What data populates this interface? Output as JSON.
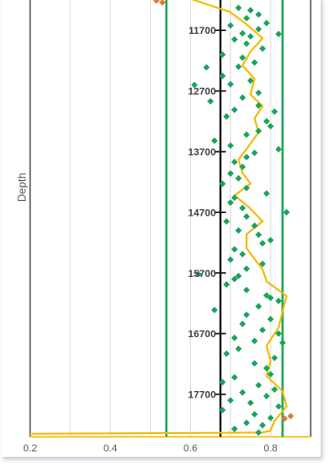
{
  "chart_data": {
    "type": "scatter",
    "title": "",
    "ylabel": "Depth",
    "xlabel": "",
    "xlim": [
      0.2,
      0.9
    ],
    "ylim": [
      18400,
      11200
    ],
    "x_ticks": [
      "0.2",
      "0.4",
      "0.6",
      "0.8"
    ],
    "x_tick_values": [
      0.2,
      0.4,
      0.6,
      0.8
    ],
    "depth_labels": [
      11700,
      12700,
      13700,
      14700,
      15700,
      16700,
      17700
    ],
    "grid": true,
    "colors": {
      "points_green": "#1aa35a",
      "points_orange": "#e07b39",
      "limit_lines": "#22a85a",
      "trend_line": "#f5b800",
      "center_line": "#000000",
      "grid": "#d9d9d9"
    },
    "reference_lines": {
      "center": 0.675,
      "lower_limit": 0.54,
      "upper_limit": 0.83
    },
    "series": [
      {
        "marker": "green-diamond",
        "points": [
          [
            0.72,
            11330
          ],
          [
            0.75,
            11370
          ],
          [
            0.77,
            11440
          ],
          [
            0.74,
            11500
          ],
          [
            0.79,
            11580
          ],
          [
            0.7,
            11620
          ],
          [
            0.77,
            11680
          ],
          [
            0.73,
            11750
          ],
          [
            0.75,
            11800
          ],
          [
            0.82,
            11760
          ],
          [
            0.71,
            11850
          ],
          [
            0.74,
            11920
          ],
          [
            0.78,
            12000
          ],
          [
            0.68,
            12100
          ],
          [
            0.73,
            12150
          ],
          [
            0.76,
            12230
          ],
          [
            0.64,
            12310
          ],
          [
            0.72,
            12300
          ],
          [
            0.68,
            12450
          ],
          [
            0.75,
            12530
          ],
          [
            0.61,
            12600
          ],
          [
            0.7,
            12590
          ],
          [
            0.77,
            12730
          ],
          [
            0.73,
            12810
          ],
          [
            0.65,
            12870
          ],
          [
            0.77,
            12940
          ],
          [
            0.71,
            13010
          ],
          [
            0.81,
            13040
          ],
          [
            0.69,
            13120
          ],
          [
            0.79,
            13200
          ],
          [
            0.8,
            13280
          ],
          [
            0.77,
            13360
          ],
          [
            0.74,
            13420
          ],
          [
            0.66,
            13520
          ],
          [
            0.7,
            13600
          ],
          [
            0.82,
            13660
          ],
          [
            0.76,
            13720
          ],
          [
            0.74,
            13790
          ],
          [
            0.71,
            13870
          ],
          [
            0.73,
            13950
          ],
          [
            0.7,
            14060
          ],
          [
            0.72,
            14140
          ],
          [
            0.68,
            14230
          ],
          [
            0.74,
            14300
          ],
          [
            0.79,
            14390
          ],
          [
            0.71,
            14460
          ],
          [
            0.7,
            14540
          ],
          [
            0.73,
            14630
          ],
          [
            0.84,
            14700
          ],
          [
            0.74,
            14770
          ],
          [
            0.69,
            14850
          ],
          [
            0.76,
            14920
          ],
          [
            0.72,
            15000
          ],
          [
            0.77,
            15070
          ],
          [
            0.8,
            15160
          ],
          [
            0.78,
            15210
          ],
          [
            0.71,
            15310
          ],
          [
            0.73,
            15390
          ],
          [
            0.7,
            15480
          ],
          [
            0.78,
            15550
          ],
          [
            0.74,
            15630
          ],
          [
            0.62,
            15720
          ],
          [
            0.72,
            15750
          ],
          [
            0.71,
            15800
          ],
          [
            0.69,
            15890
          ],
          [
            0.74,
            15980
          ],
          [
            0.79,
            16070
          ],
          [
            0.8,
            16110
          ],
          [
            0.82,
            16160
          ],
          [
            0.77,
            16250
          ],
          [
            0.66,
            16310
          ],
          [
            0.74,
            16390
          ],
          [
            0.8,
            16460
          ],
          [
            0.73,
            16540
          ],
          [
            0.78,
            16640
          ],
          [
            0.82,
            16700
          ],
          [
            0.71,
            16770
          ],
          [
            0.76,
            16820
          ],
          [
            0.83,
            16850
          ],
          [
            0.72,
            16950
          ],
          [
            0.69,
            17030
          ],
          [
            0.81,
            17100
          ],
          [
            0.76,
            17190
          ],
          [
            0.79,
            17270
          ],
          [
            0.8,
            17370
          ],
          [
            0.71,
            17420
          ],
          [
            0.68,
            17500
          ],
          [
            0.77,
            17550
          ],
          [
            0.81,
            17620
          ],
          [
            0.73,
            17670
          ],
          [
            0.79,
            17730
          ],
          [
            0.7,
            17800
          ],
          [
            0.75,
            17840
          ],
          [
            0.82,
            17900
          ],
          [
            0.68,
            17960
          ],
          [
            0.76,
            18030
          ],
          [
            0.8,
            18090
          ],
          [
            0.74,
            18170
          ],
          [
            0.78,
            18210
          ],
          [
            0.71,
            18270
          ],
          [
            0.77,
            18330
          ]
        ]
      },
      {
        "marker": "orange-diamond",
        "points": [
          [
            0.515,
            11210
          ],
          [
            0.53,
            11240
          ],
          [
            0.835,
            18100
          ],
          [
            0.85,
            18060
          ]
        ]
      },
      {
        "marker": "trend-line",
        "points": [
          [
            0.5,
            11000
          ],
          [
            0.6,
            11180
          ],
          [
            0.7,
            11400
          ],
          [
            0.74,
            11600
          ],
          [
            0.78,
            11830
          ],
          [
            0.75,
            12050
          ],
          [
            0.73,
            12280
          ],
          [
            0.76,
            12500
          ],
          [
            0.75,
            12760
          ],
          [
            0.78,
            12950
          ],
          [
            0.76,
            13150
          ],
          [
            0.77,
            13380
          ],
          [
            0.75,
            13570
          ],
          [
            0.72,
            13830
          ],
          [
            0.73,
            14050
          ],
          [
            0.75,
            14230
          ],
          [
            0.71,
            14420
          ],
          [
            0.75,
            14640
          ],
          [
            0.78,
            14850
          ],
          [
            0.74,
            15060
          ],
          [
            0.74,
            15290
          ],
          [
            0.76,
            15470
          ],
          [
            0.78,
            15640
          ],
          [
            0.79,
            15840
          ],
          [
            0.84,
            16080
          ],
          [
            0.83,
            16330
          ],
          [
            0.82,
            16600
          ],
          [
            0.79,
            16900
          ],
          [
            0.8,
            17150
          ],
          [
            0.79,
            17400
          ],
          [
            0.83,
            17650
          ],
          [
            0.84,
            17900
          ],
          [
            0.81,
            18140
          ],
          [
            0.8,
            18300
          ],
          [
            0.78,
            18330
          ],
          [
            0.2,
            18350
          ]
        ]
      }
    ]
  }
}
